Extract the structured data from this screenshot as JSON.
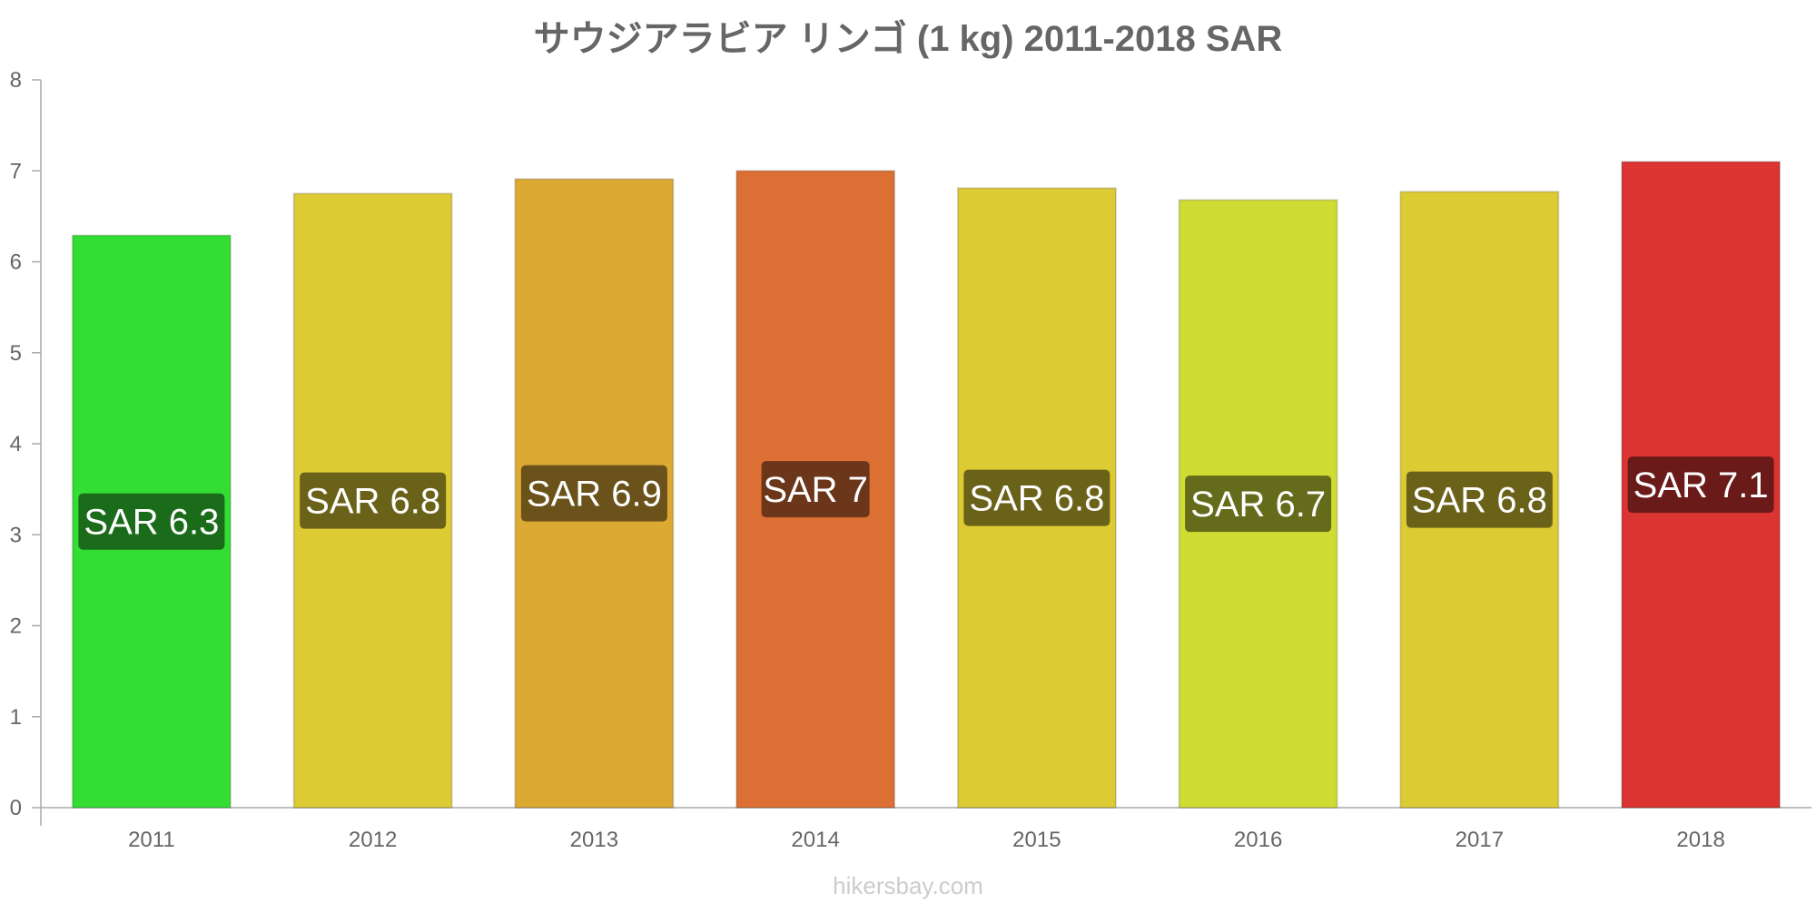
{
  "chart_data": {
    "type": "bar",
    "title": "サウジアラビア リンゴ (1 kg) 2011-2018 SAR",
    "xlabel": "",
    "ylabel": "",
    "categories": [
      "2011",
      "2012",
      "2013",
      "2014",
      "2015",
      "2016",
      "2017",
      "2018"
    ],
    "values": [
      6.29,
      6.75,
      6.91,
      7.0,
      6.81,
      6.68,
      6.77,
      7.1
    ],
    "data_labels": [
      "SAR 6.3",
      "SAR 6.8",
      "SAR 6.9",
      "SAR 7",
      "SAR 6.8",
      "SAR 6.7",
      "SAR 6.8",
      "SAR 7.1"
    ],
    "bar_colors": [
      "#33dd33",
      "#dccb33",
      "#dca933",
      "#dc6f33",
      "#dccb33",
      "#cfdc33",
      "#dccb33",
      "#dc3333"
    ],
    "label_box_colors": [
      "#1a6b1a",
      "#6b621a",
      "#6b511a",
      "#6b361a",
      "#6b621a",
      "#646b1a",
      "#6b621a",
      "#6b1a1a"
    ],
    "yticks": [
      0,
      1,
      2,
      3,
      4,
      5,
      6,
      7,
      8
    ],
    "ylim": [
      0,
      8
    ],
    "grid": false,
    "legend": "none"
  },
  "watermark": "hikersbay.com"
}
